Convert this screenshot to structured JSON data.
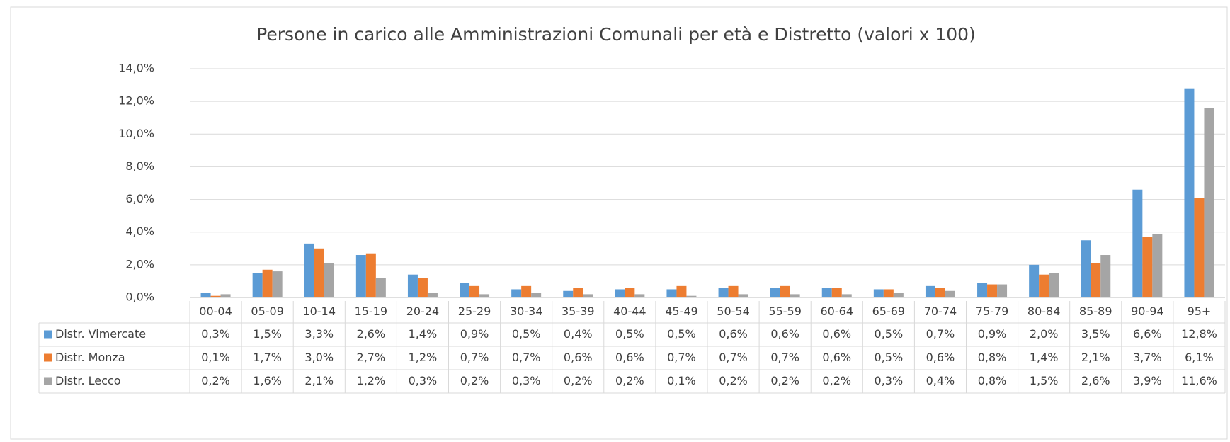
{
  "chart_data": {
    "type": "bar",
    "title": "Persone in carico alle Amministrazioni Comunali per età e Distretto (valori x 100)",
    "categories": [
      "00-04",
      "05-09",
      "10-14",
      "15-19",
      "20-24",
      "25-29",
      "30-34",
      "35-39",
      "40-44",
      "45-49",
      "50-54",
      "55-59",
      "60-64",
      "65-69",
      "70-74",
      "75-79",
      "80-84",
      "85-89",
      "90-94",
      "95+"
    ],
    "series": [
      {
        "name": "Distr. Vimercate",
        "color": "#5b9bd5",
        "values": [
          0.3,
          1.5,
          3.3,
          2.6,
          1.4,
          0.9,
          0.5,
          0.4,
          0.5,
          0.5,
          0.6,
          0.6,
          0.6,
          0.5,
          0.7,
          0.9,
          2.0,
          3.5,
          6.6,
          12.8
        ],
        "value_labels": [
          "0,3%",
          "1,5%",
          "3,3%",
          "2,6%",
          "1,4%",
          "0,9%",
          "0,5%",
          "0,4%",
          "0,5%",
          "0,5%",
          "0,6%",
          "0,6%",
          "0,6%",
          "0,5%",
          "0,7%",
          "0,9%",
          "2,0%",
          "3,5%",
          "6,6%",
          "12,8%"
        ]
      },
      {
        "name": "Distr. Monza",
        "color": "#ed7d31",
        "values": [
          0.1,
          1.7,
          3.0,
          2.7,
          1.2,
          0.7,
          0.7,
          0.6,
          0.6,
          0.7,
          0.7,
          0.7,
          0.6,
          0.5,
          0.6,
          0.8,
          1.4,
          2.1,
          3.7,
          6.1
        ],
        "value_labels": [
          "0,1%",
          "1,7%",
          "3,0%",
          "2,7%",
          "1,2%",
          "0,7%",
          "0,7%",
          "0,6%",
          "0,6%",
          "0,7%",
          "0,7%",
          "0,7%",
          "0,6%",
          "0,5%",
          "0,6%",
          "0,8%",
          "1,4%",
          "2,1%",
          "3,7%",
          "6,1%"
        ]
      },
      {
        "name": "Distr. Lecco",
        "color": "#a5a5a5",
        "values": [
          0.2,
          1.6,
          2.1,
          1.2,
          0.3,
          0.2,
          0.3,
          0.2,
          0.2,
          0.1,
          0.2,
          0.2,
          0.2,
          0.3,
          0.4,
          0.8,
          1.5,
          2.6,
          3.9,
          11.6
        ],
        "value_labels": [
          "0,2%",
          "1,6%",
          "2,1%",
          "1,2%",
          "0,3%",
          "0,2%",
          "0,3%",
          "0,2%",
          "0,2%",
          "0,1%",
          "0,2%",
          "0,2%",
          "0,2%",
          "0,3%",
          "0,4%",
          "0,8%",
          "1,5%",
          "2,6%",
          "3,9%",
          "11,6%"
        ]
      }
    ],
    "ylim": [
      0,
      14
    ],
    "yticks": [
      {
        "value": 0,
        "label": "0,0%"
      },
      {
        "value": 2,
        "label": "2,0%"
      },
      {
        "value": 4,
        "label": "4,0%"
      },
      {
        "value": 6,
        "label": "6,0%"
      },
      {
        "value": 8,
        "label": "8,0%"
      },
      {
        "value": 10,
        "label": "10,0%"
      },
      {
        "value": 12,
        "label": "12,0%"
      },
      {
        "value": 14,
        "label": "14,0%"
      }
    ],
    "grid": true
  }
}
